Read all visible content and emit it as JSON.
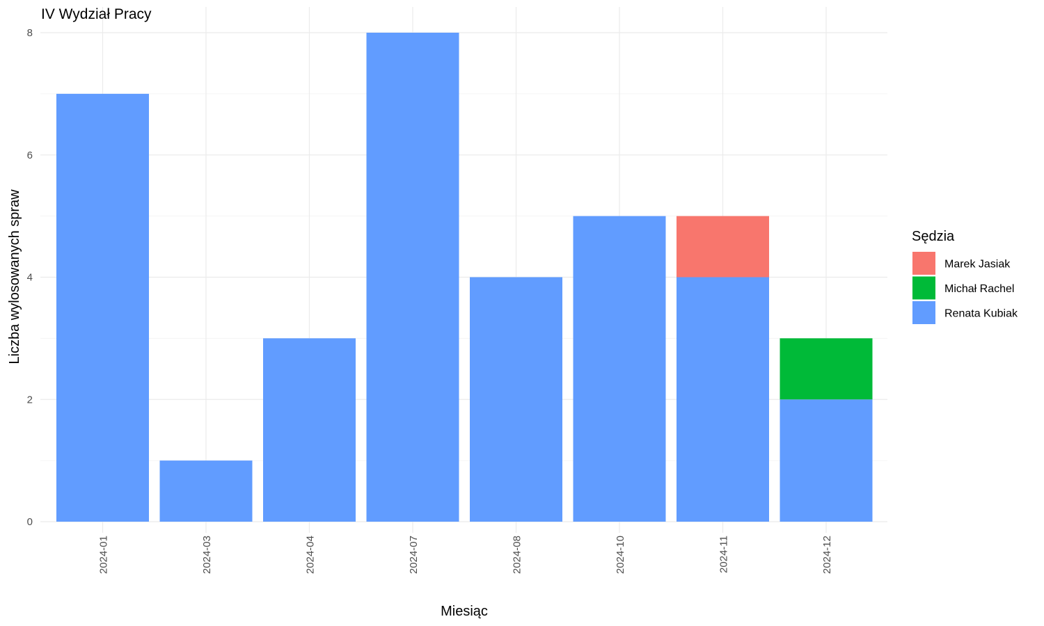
{
  "chart_data": {
    "type": "bar",
    "stacked": true,
    "title": "IV Wydział Pracy",
    "xlabel": "Miesiąc",
    "ylabel": "Liczba wylosowanych spraw",
    "categories": [
      "2024-01",
      "2024-03",
      "2024-04",
      "2024-07",
      "2024-08",
      "2024-10",
      "2024-11",
      "2024-12"
    ],
    "series": [
      {
        "name": "Renata Kubiak",
        "color": "#619CFF",
        "values": [
          7,
          1,
          3,
          8,
          4,
          5,
          4,
          2
        ]
      },
      {
        "name": "Michał Rachel",
        "color": "#00BA38",
        "values": [
          0,
          0,
          0,
          0,
          0,
          0,
          0,
          1
        ]
      },
      {
        "name": "Marek Jasiak",
        "color": "#F8766D",
        "values": [
          0,
          0,
          0,
          0,
          0,
          0,
          1,
          0
        ]
      }
    ],
    "ylim": [
      0,
      8
    ],
    "yticks": [
      0,
      2,
      4,
      6,
      8
    ],
    "grid": true,
    "legend": {
      "title": "Sędzia",
      "position": "right",
      "entries": [
        {
          "name": "Marek Jasiak",
          "color": "#F8766D"
        },
        {
          "name": "Michał Rachel",
          "color": "#00BA38"
        },
        {
          "name": "Renata Kubiak",
          "color": "#619CFF"
        }
      ]
    }
  }
}
